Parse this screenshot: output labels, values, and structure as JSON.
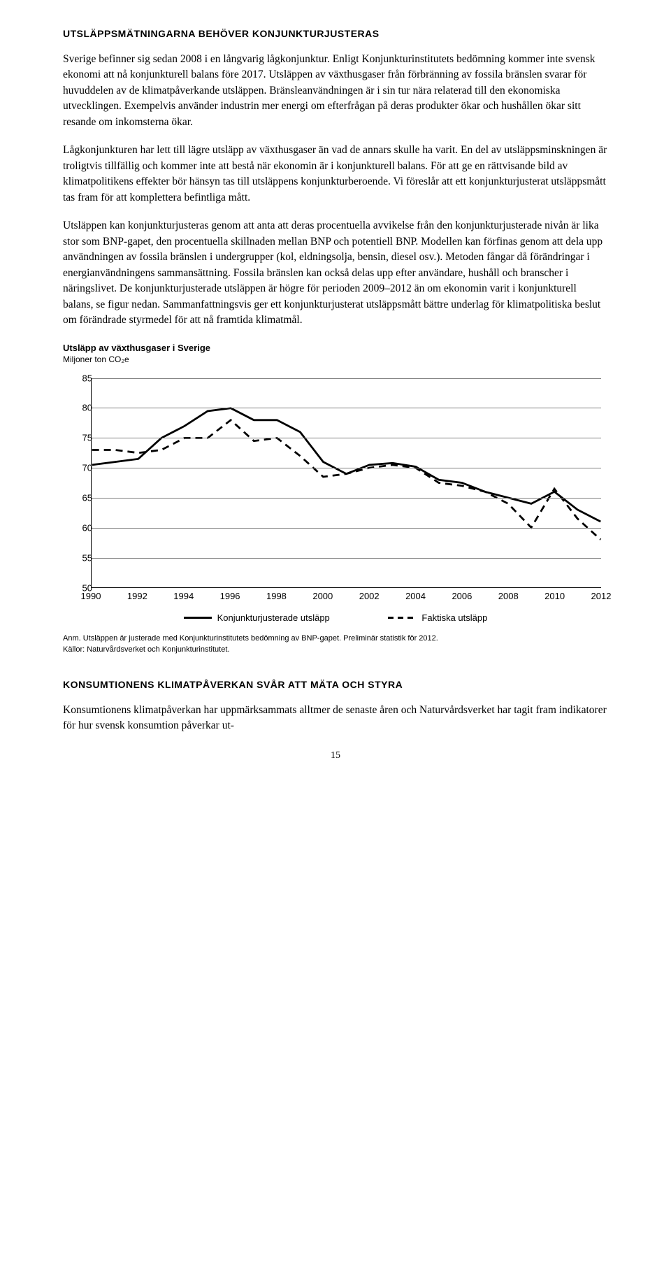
{
  "headings": {
    "h1": "UTSLÄPPSMÄTNINGARNA BEHÖVER KONJUNKTURJUSTERAS",
    "h2": "KONSUMTIONENS KLIMATPÅVERKAN SVÅR ATT MÄTA OCH STYRA"
  },
  "paragraphs": {
    "p1": "Sverige befinner sig sedan 2008 i en långvarig lågkonjunktur. Enligt Konjunkturinstitutets bedömning kommer inte svensk ekonomi att nå konjunkturell balans före 2017. Utsläppen av växthusgaser från förbränning av fossila bränslen svarar för huvuddelen av de klimatpåverkande utsläppen. Bränsleanvändningen är i sin tur nära relaterad till den ekonomiska utvecklingen. Exempelvis använder industrin mer energi om efterfrågan på deras produkter ökar och hushållen ökar sitt resande om inkomsterna ökar.",
    "p2": "Lågkonjunkturen har lett till lägre utsläpp av växthusgaser än vad de annars skulle ha varit. En del av utsläppsminskningen är troligtvis tillfällig och kommer inte att bestå när ekonomin är i konjunkturell balans. För att ge en rättvisande bild av klimatpolitikens effekter bör hänsyn tas till utsläppens konjunkturberoende. Vi föreslår att ett konjunkturjusterat utsläppsmått tas fram för att komplettera befintliga mått.",
    "p3": "Utsläppen kan konjunkturjusteras genom att anta att deras procentuella avvikelse från den konjunkturjusterade nivån är lika stor som BNP-gapet, den procentuella skillnaden mellan BNP och potentiell BNP. Modellen kan förfinas genom att dela upp användningen av fossila bränslen i undergrupper (kol, eldningsolja, bensin, diesel osv.). Metoden fångar då förändringar i energianvändningens sammansättning. Fossila bränslen kan också delas upp efter användare, hushåll och branscher i näringslivet. De konjunkturjusterade utsläppen är högre för perioden 2009–2012 än om ekonomin varit i konjunkturell balans, se figur nedan. Sammanfattningsvis ger ett konjunkturjusterat utsläppsmått bättre underlag för klimatpolitiska beslut om förändrade styrmedel för att nå framtida klimatmål.",
    "p4": "Konsumtionens klimatpåverkan har uppmärksammats alltmer de senaste åren och Naturvårdsverket har tagit fram indikatorer för hur svensk konsumtion påverkar ut-"
  },
  "chart": {
    "title": "Utsläpp av växthusgaser i Sverige",
    "subtitle": "Miljoner ton CO₂e",
    "type": "line",
    "x_years": [
      1990,
      1991,
      1992,
      1993,
      1994,
      1995,
      1996,
      1997,
      1998,
      1999,
      2000,
      2001,
      2002,
      2003,
      2004,
      2005,
      2006,
      2007,
      2008,
      2009,
      2010,
      2011,
      2012
    ],
    "x_ticks": [
      1990,
      1992,
      1994,
      1996,
      1998,
      2000,
      2002,
      2004,
      2006,
      2008,
      2010,
      2012
    ],
    "ylim": [
      50,
      85
    ],
    "ytick_step": 5,
    "y_ticks": [
      50,
      55,
      60,
      65,
      70,
      75,
      80,
      85
    ],
    "series": [
      {
        "name": "Konjunkturjusterade utsläpp",
        "style": "solid",
        "color": "#000000",
        "width": 2.8,
        "values": [
          70.5,
          71,
          71.5,
          75,
          77,
          79.5,
          80,
          78,
          78,
          76,
          71,
          69,
          70.5,
          70.8,
          70.2,
          68,
          67.5,
          66,
          65,
          64,
          66,
          63,
          61
        ]
      },
      {
        "name": "Faktiska utsläpp",
        "style": "dash",
        "color": "#000000",
        "width": 2.8,
        "dash": "10,7",
        "values": [
          73,
          73,
          72.5,
          73,
          75,
          75,
          78,
          74.5,
          75,
          72,
          68.5,
          69,
          70,
          70.5,
          70,
          67.5,
          67,
          66,
          64,
          60,
          66.5,
          61.5,
          58
        ]
      }
    ],
    "grid_color": "#808080",
    "background_color": "#ffffff",
    "legend_labels": {
      "solid": "Konjunkturjusterade utsläpp",
      "dash": "Faktiska utsläpp"
    },
    "note": "Anm. Utsläppen är justerade med Konjunkturinstitutets bedömning av BNP-gapet. Preliminär statistik för 2012.",
    "sources": "Källor: Naturvårdsverket och Konjunkturinstitutet."
  },
  "page_number": "15"
}
